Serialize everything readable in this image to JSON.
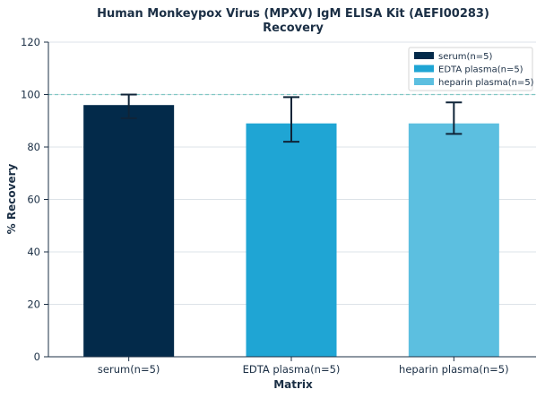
{
  "chart_data": {
    "type": "bar",
    "title": "Human Monkeypox Virus (MPXV) IgM ELISA Kit (AEFI00283)",
    "subtitle": "Recovery",
    "xlabel": "Matrix",
    "ylabel": "% Recovery",
    "ylim": [
      0,
      120
    ],
    "yticks": [
      0,
      20,
      40,
      60,
      80,
      100,
      120
    ],
    "reference_line": 100,
    "grid": "horizontal",
    "legend_position": "top-right",
    "categories": [
      "serum(n=5)",
      "EDTA plasma(n=5)",
      "heparin plasma(n=5)"
    ],
    "values": [
      96,
      89,
      89
    ],
    "error_low": [
      91,
      82,
      85
    ],
    "error_high": [
      100,
      99,
      97
    ],
    "colors": [
      "#032a4a",
      "#1fa5d4",
      "#5cbfe0"
    ],
    "legend": [
      "serum(n=5)",
      "EDTA plasma(n=5)",
      "heparin plasma(n=5)"
    ]
  }
}
